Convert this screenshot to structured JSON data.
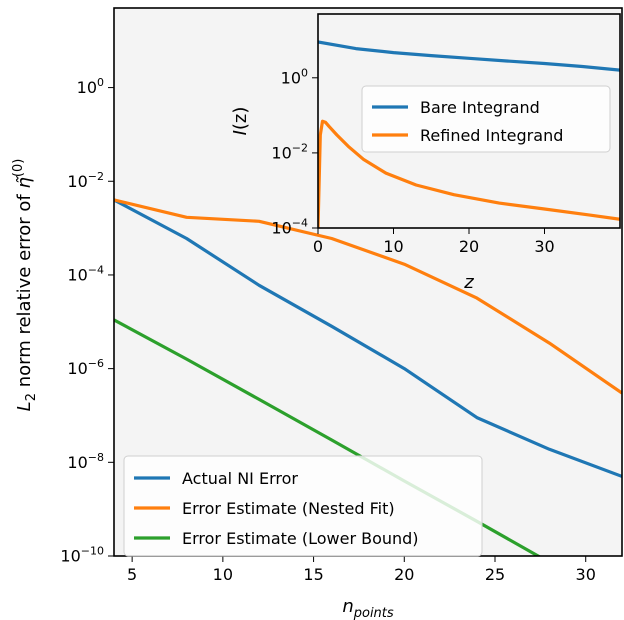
{
  "chart_data": [
    {
      "type": "line",
      "xlabel_base": "n",
      "xlabel_sub": "points",
      "ylabel_prefix": "L",
      "ylabel_sub": "2",
      "ylabel_text": " norm relative error of ",
      "ylabel_symbol": "η̃",
      "ylabel_sup": "(0)",
      "xlim": [
        4,
        32
      ],
      "ylim": [
        1e-10,
        50
      ],
      "y_scale": "log",
      "x_ticks": [
        5,
        10,
        15,
        20,
        25,
        30
      ],
      "y_ticks": [
        {
          "value": 1e-10,
          "base": "10",
          "exp": "−10"
        },
        {
          "value": 1e-08,
          "base": "10",
          "exp": "−8"
        },
        {
          "value": 1e-06,
          "base": "10",
          "exp": "−6"
        },
        {
          "value": 0.0001,
          "base": "10",
          "exp": "−4"
        },
        {
          "value": 0.01,
          "base": "10",
          "exp": "−2"
        },
        {
          "value": 1,
          "base": "10",
          "exp": "0"
        }
      ],
      "background": "#f4f4f4",
      "legend_position": "lower-left",
      "series": [
        {
          "name": "Actual NI Error",
          "color": "#1f77b4",
          "x": [
            4,
            8,
            12,
            16,
            20,
            24,
            28,
            32
          ],
          "y": [
            0.004,
            0.0006,
            6e-05,
            8e-06,
            1e-06,
            9e-08,
            1.9e-08,
            5e-09
          ]
        },
        {
          "name": "Error Estimate (Nested Fit)",
          "color": "#ff7f0e",
          "x": [
            4,
            8,
            12,
            16,
            20,
            24,
            28,
            32
          ],
          "y": [
            0.004,
            0.0017,
            0.0014,
            0.0006,
            0.00017,
            3.2e-05,
            3.5e-06,
            3e-07
          ]
        },
        {
          "name": "Error Estimate (Lower Bound)",
          "color": "#2ca02c",
          "x": [
            4,
            8,
            12,
            16,
            20,
            24,
            28,
            32
          ],
          "y": [
            1.1e-05,
            1.6e-06,
            2.2e-07,
            3e-08,
            4e-09,
            5.5e-10,
            7.3e-11,
            1e-11
          ]
        }
      ]
    },
    {
      "type": "line",
      "xlabel": "z",
      "ylabel_italic": "I",
      "ylabel_rest": "(z)",
      "xlim": [
        0,
        40
      ],
      "ylim": [
        0.0001,
        50
      ],
      "y_scale": "log",
      "x_ticks": [
        0,
        10,
        20,
        30
      ],
      "y_ticks": [
        {
          "value": 0.0001,
          "base": "10",
          "exp": "−4"
        },
        {
          "value": 0.01,
          "base": "10",
          "exp": "−2"
        },
        {
          "value": 1,
          "base": "10",
          "exp": "0"
        }
      ],
      "background": "#f4f4f4",
      "legend_position": "center-right",
      "series": [
        {
          "name": "Bare Integrand",
          "color": "#1f77b4",
          "x": [
            0,
            5,
            10,
            15,
            20,
            25,
            30,
            35,
            40
          ],
          "y": [
            9.0,
            6.0,
            4.7,
            3.9,
            3.3,
            2.8,
            2.4,
            2.0,
            1.6
          ]
        },
        {
          "name": "Refined Integrand",
          "color": "#ff7f0e",
          "x": [
            0,
            0.3,
            0.6,
            1.0,
            1.5,
            2.5,
            4,
            6,
            9,
            13,
            18,
            24,
            30,
            36,
            40
          ],
          "y": [
            0.0001,
            0.03,
            0.07,
            0.065,
            0.05,
            0.03,
            0.015,
            0.0068,
            0.0029,
            0.0014,
            0.00077,
            0.00046,
            0.00032,
            0.00022,
            0.00017
          ]
        }
      ]
    }
  ]
}
